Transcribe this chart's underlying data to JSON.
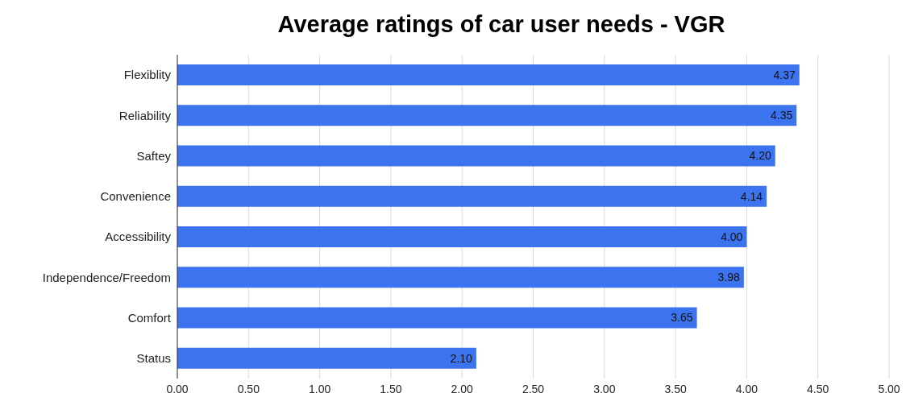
{
  "chart_data": {
    "type": "bar",
    "title": "Average ratings of car user needs - VGR",
    "orientation": "horizontal",
    "categories": [
      "Flexiblity",
      "Reliability",
      "Saftey",
      "Convenience",
      "Accessibility",
      "Independence/Freedom",
      "Comfort",
      "Status"
    ],
    "values": [
      4.37,
      4.35,
      4.2,
      4.14,
      4.0,
      3.98,
      3.65,
      2.1
    ],
    "value_labels": [
      "4.37",
      "4.35",
      "4.20",
      "4.14",
      "4.00",
      "3.98",
      "3.65",
      "2.10"
    ],
    "color": "#3b74ee",
    "xlim": [
      0,
      5
    ],
    "xticks": [
      {
        "value": 0,
        "label": "0.00"
      },
      {
        "value": 0.5,
        "label": "0.50"
      },
      {
        "value": 1,
        "label": "1.00"
      },
      {
        "value": 1.5,
        "label": "1.50"
      },
      {
        "value": 2,
        "label": "2.00"
      },
      {
        "value": 2.5,
        "label": "2.50"
      },
      {
        "value": 3,
        "label": "3.00"
      },
      {
        "value": 3.5,
        "label": "3.50"
      },
      {
        "value": 4,
        "label": "4.00"
      },
      {
        "value": 4.5,
        "label": "4.50"
      },
      {
        "value": 5,
        "label": "5.00"
      }
    ],
    "grid": "x"
  }
}
